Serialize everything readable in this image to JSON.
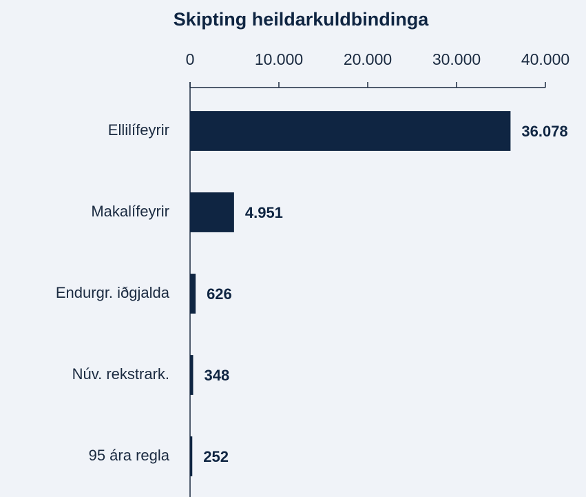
{
  "chart_data": {
    "type": "bar",
    "orientation": "horizontal",
    "title": "Skipting heildarkuldbindinga",
    "categories": [
      "Ellilífeyrir",
      "Makalífeyrir",
      "Endurgr. iðgjalda",
      "Núv. rekstrark.",
      "95 ára regla"
    ],
    "values": [
      36078,
      4951,
      626,
      348,
      252
    ],
    "value_labels": [
      "36.078",
      "4.951",
      "626",
      "348",
      "252"
    ],
    "color": "#0f2542",
    "xlim": [
      0,
      40000
    ],
    "xticks": [
      0,
      {
        "value": 10000,
        "label": "10.000"
      },
      {
        "value": 20000,
        "label": "20.000"
      },
      {
        "value": 30000,
        "label": "30.000"
      },
      {
        "value": 40000,
        "label": "40.000"
      }
    ]
  }
}
